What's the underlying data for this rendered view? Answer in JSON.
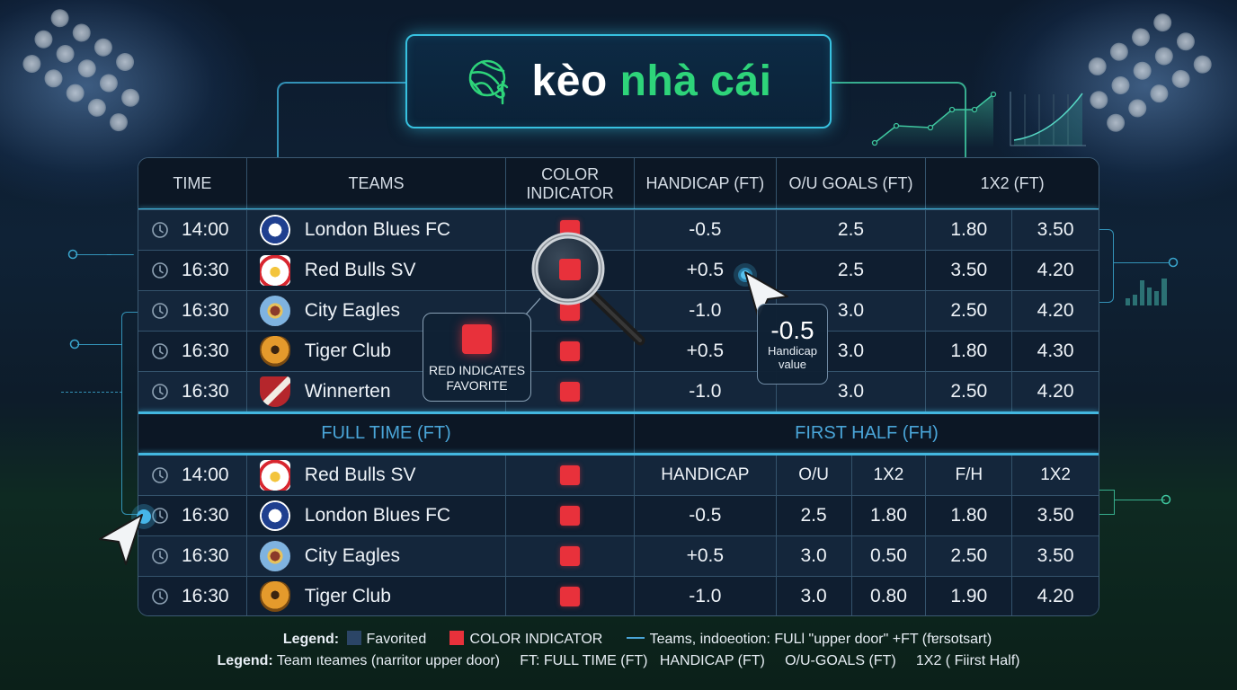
{
  "header": {
    "title_part1": "kèo",
    "title_part2": "nhà cái",
    "icon": "soccer-ball-dollar-icon",
    "accent_color": "#2ed47a",
    "border_color": "#37c1e0"
  },
  "table": {
    "headers": {
      "time": "TIME",
      "teams": "TEAMS",
      "color_indicator": "COLOR INDICATOR",
      "handicap": "HANDICAP (FT)",
      "ou_goals": "O/U GOALS (FT)",
      "one_x_two": "1X2 (FT)"
    },
    "rows": [
      {
        "time": "14:00",
        "team": "London Blues FC",
        "crest": "blue",
        "handicap": "-0.5",
        "ou": "2.5",
        "odd1": "1.80",
        "odd2": "3.50"
      },
      {
        "time": "16:30",
        "team": "Red Bulls SV",
        "crest": "redbull",
        "handicap": "+0.5",
        "ou": "2.5",
        "odd1": "3.50",
        "odd2": "4.20"
      },
      {
        "time": "16:30",
        "team": "City Eagles",
        "crest": "sky",
        "handicap": "-1.0",
        "ou": "3.0",
        "odd1": "2.50",
        "odd2": "4.20"
      },
      {
        "time": "16:30",
        "team": "Tiger Club",
        "crest": "tiger",
        "handicap": "+0.5",
        "ou": "3.0",
        "odd1": "1.80",
        "odd2": "4.30"
      },
      {
        "time": "16:30",
        "team": "Winnerten",
        "crest": "shield-red",
        "handicap": "-1.0",
        "ou": "3.0",
        "odd1": "2.50",
        "odd2": "4.20"
      }
    ],
    "indicator_color": "#e8313b"
  },
  "sections": {
    "full_time": "FULL TIME (FT)",
    "first_half": "FIRST HALF (FH)"
  },
  "second_table": {
    "headers": {
      "handicap": "HANDICAP",
      "ou": "O/U",
      "one_x_two": "1X2",
      "fh": "F/H",
      "one_x_two_2": "1X2"
    },
    "rows": [
      {
        "time": "14:00",
        "team": "Red Bulls SV",
        "crest": "redbull",
        "handicap": "-0.5",
        "ou": "2.5",
        "x12": "1.80",
        "fh": "1.80",
        "x12b": "3.50"
      },
      {
        "time": "16:30",
        "team": "London Blues FC",
        "crest": "blue",
        "handicap": "+0.5",
        "ou": "3.0",
        "x12": "0.50",
        "fh": "2.50",
        "x12b": "3.50"
      },
      {
        "time": "16:30",
        "team": "City Eagles",
        "crest": "sky",
        "handicap": "-1.0",
        "ou": "3.0",
        "x12": "0.80",
        "fh": "1.90",
        "x12b": "4.20"
      }
    ],
    "first_row_header_time": "14:00",
    "first_row_header_team": "Red Bulls SV"
  },
  "second_rows_display": [
    {
      "time": "16:30",
      "team": "London Blues FC",
      "crest": "blue",
      "handicap": "-0.5",
      "ou": "2.5",
      "x12": "1.80",
      "fh": "1.80",
      "x12b": "3.50"
    },
    {
      "time": "16:30",
      "team": "City Eagles",
      "crest": "sky",
      "handicap": "+0.5",
      "ou": "3.0",
      "x12": "0.50",
      "fh": "2.50",
      "x12b": "3.50"
    },
    {
      "time": "16:30",
      "team": "Tiger Club",
      "crest": "tiger",
      "handicap": "-1.0",
      "ou": "3.0",
      "x12": "0.80",
      "fh": "1.90",
      "x12b": "4.20"
    }
  ],
  "callout": {
    "text": "RED INDICATES FAVORITE"
  },
  "tooltip": {
    "value": "-0.5",
    "label": "Handicap value"
  },
  "legend": {
    "line1": {
      "label": "Legend:",
      "item1": "Favorited",
      "item1_color": "#2b4566",
      "item2": "COLOR INDICATOR",
      "item2_color": "#e8313b",
      "item3": "Teams, indoeotion: FULl \"upper door\" +FT (fɐrsotsart)"
    },
    "line2": {
      "label": "Legend:",
      "text": "Team ıteames (narritor upper door)",
      "ft_label": "FT:",
      "ft_text": "FULL TIME (FT)",
      "extra": "HANDICAP (FT)",
      "extra2": "O/U-GOALS (FT)",
      "extra3": "1X2 ( Fiirst Half)"
    }
  }
}
